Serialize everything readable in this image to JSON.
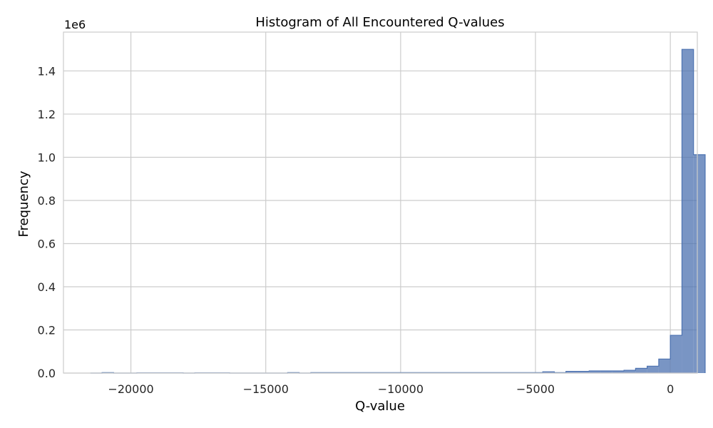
{
  "chart_data": {
    "type": "bar",
    "title": "Histogram of All Encountered Q-values",
    "xlabel": "Q-value",
    "ylabel": "Frequency",
    "y_offset_label": "1e6",
    "xlim": [
      -22500,
      1000
    ],
    "ylim": [
      0,
      1.58
    ],
    "xticks": [
      -20000,
      -15000,
      -10000,
      -5000,
      0
    ],
    "xtick_labels": [
      "−20000",
      "−15000",
      "−10000",
      "−5000",
      "0"
    ],
    "yticks": [
      0.0,
      0.2,
      0.4,
      0.6,
      0.8,
      1.0,
      1.2,
      1.4
    ],
    "ytick_labels": [
      "0.0",
      "0.2",
      "0.4",
      "0.6",
      "0.8",
      "1.0",
      "1.2",
      "1.4"
    ],
    "grid": true,
    "bin_width": 430,
    "bin_start": -21500,
    "values": [
      0.0,
      0.002,
      0.0,
      0.0,
      0.001,
      0.001,
      0.001,
      0.001,
      0.0,
      0.001,
      0.001,
      0.001,
      0.0,
      0.0,
      0.0,
      0.0,
      0.0,
      0.002,
      0.0,
      0.002,
      0.002,
      0.002,
      0.002,
      0.002,
      0.002,
      0.002,
      0.002,
      0.002,
      0.002,
      0.002,
      0.002,
      0.002,
      0.002,
      0.002,
      0.002,
      0.002,
      0.002,
      0.002,
      0.002,
      0.006,
      0.002,
      0.008,
      0.008,
      0.01,
      0.01,
      0.01,
      0.013,
      0.022,
      0.032,
      0.065,
      0.175,
      1.5,
      1.012
    ],
    "colors": {
      "fill": "#4c72b0",
      "grid": "#cccccc",
      "axes_edge": "#cccccc"
    }
  }
}
